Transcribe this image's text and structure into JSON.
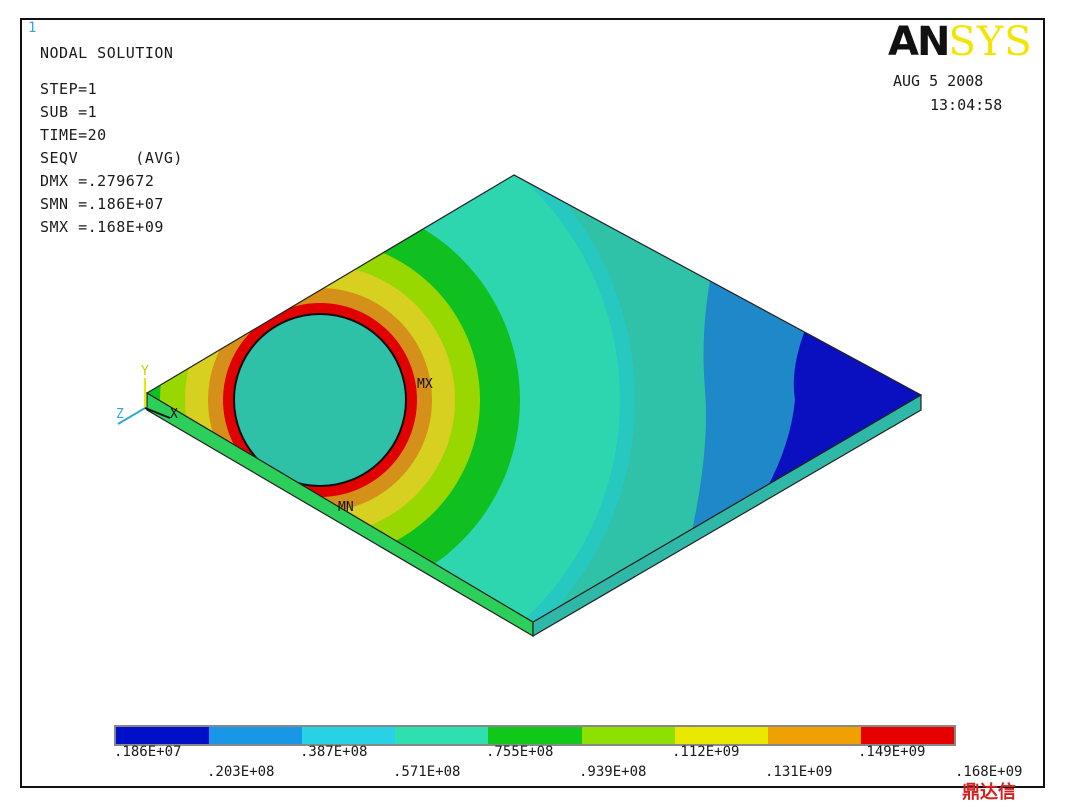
{
  "window_number": "1",
  "info": {
    "title": "NODAL SOLUTION",
    "step": "STEP=1",
    "sub": "SUB =1",
    "time": "TIME=20",
    "result": "SEQV      (AVG)",
    "dmx": "DMX =.279672",
    "smn": "SMN =.186E+07",
    "smx": "SMX =.168E+09"
  },
  "brand": {
    "logo_a": "AN",
    "logo_b": "SYS",
    "date": "AUG  5 2008",
    "time": "13:04:58"
  },
  "markers": {
    "max": "MX",
    "min": "MN"
  },
  "triad": {
    "x": "X",
    "y": "Y",
    "z": "Z"
  },
  "legend": {
    "colors": [
      "#0010c8",
      "#1a96e6",
      "#27d2e6",
      "#2ee0b0",
      "#10c818",
      "#8ee000",
      "#e8e800",
      "#f0a000",
      "#e60000"
    ],
    "top_labels": [
      ".186E+07",
      ".387E+08",
      ".755E+08",
      ".112E+09",
      ".149E+09"
    ],
    "bottom_labels": [
      ".203E+08",
      ".571E+08",
      ".939E+08",
      ".131E+09",
      ".168E+09"
    ]
  },
  "watermark": "鼎达信"
}
